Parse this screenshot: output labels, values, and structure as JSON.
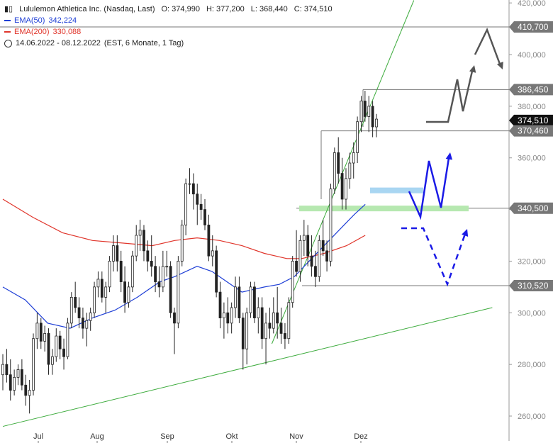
{
  "legend": {
    "symbol": "Lululemon Athletica Inc. (Nasdaq, Last)",
    "open": "O: 374,990",
    "high": "H: 377,200",
    "low": "L: 368,440",
    "close": "C: 374,510",
    "ema50_label": "EMA(50)",
    "ema50_value": "342,224",
    "ema200_label": "EMA(200)",
    "ema200_value": "330,088",
    "range": "14.06.2022 - 08.12.2022",
    "range_detail": "(EST, 6 Monate, 1 Tag)"
  },
  "colors": {
    "ema50": "#1f3fd6",
    "ema200": "#e0352b",
    "trend": "#3cab3c",
    "projection_up": "#1a1ae6",
    "projection_gray": "#555555",
    "support_zone": "#b6e8b0",
    "resistance_zone": "#a9d6f2"
  },
  "chart_data": {
    "type": "candlestick",
    "x_ticks": [
      "Jul",
      "Aug",
      "Sep",
      "Okt",
      "Nov",
      "Dez"
    ],
    "y_ticks": [
      "420,000",
      "400,000",
      "380,000",
      "360,000",
      "340,000",
      "320,000",
      "300,000",
      "280,000",
      "260,000"
    ],
    "y_tick_values": [
      420,
      400,
      380,
      360,
      340,
      320,
      300,
      280,
      260
    ],
    "ylim": [
      254,
      421
    ],
    "price_marks": [
      {
        "label": "410,700",
        "value": 410.7,
        "style": "gray"
      },
      {
        "label": "386,450",
        "value": 386.45,
        "style": "gray"
      },
      {
        "label": "374,510",
        "value": 374.51,
        "style": "black"
      },
      {
        "label": "370,460",
        "value": 370.46,
        "style": "gray"
      },
      {
        "label": "340,500",
        "value": 340.5,
        "style": "gray"
      },
      {
        "label": "310,520",
        "value": 310.52,
        "style": "gray"
      }
    ],
    "candles": [
      [
        276,
        284,
        270,
        280
      ],
      [
        280,
        286,
        273,
        276
      ],
      [
        276,
        282,
        266,
        270
      ],
      [
        270,
        278,
        268,
        275
      ],
      [
        275,
        280,
        272,
        278
      ],
      [
        278,
        282,
        270,
        272
      ],
      [
        272,
        276,
        264,
        268
      ],
      [
        268,
        274,
        261,
        270
      ],
      [
        270,
        292,
        268,
        290
      ],
      [
        290,
        300,
        286,
        296
      ],
      [
        296,
        298,
        286,
        289
      ],
      [
        289,
        295,
        285,
        292
      ],
      [
        292,
        294,
        276,
        280
      ],
      [
        280,
        286,
        276,
        283
      ],
      [
        283,
        294,
        281,
        291
      ],
      [
        291,
        293,
        282,
        286
      ],
      [
        286,
        290,
        278,
        283
      ],
      [
        283,
        298,
        282,
        296
      ],
      [
        296,
        308,
        294,
        306
      ],
      [
        306,
        312,
        300,
        302
      ],
      [
        302,
        306,
        294,
        298
      ],
      [
        298,
        302,
        290,
        294
      ],
      [
        294,
        300,
        287,
        297
      ],
      [
        297,
        302,
        293,
        300
      ],
      [
        300,
        312,
        298,
        310
      ],
      [
        310,
        316,
        306,
        313
      ],
      [
        313,
        316,
        304,
        306
      ],
      [
        306,
        312,
        300,
        310
      ],
      [
        310,
        322,
        308,
        320
      ],
      [
        320,
        330,
        316,
        326
      ],
      [
        326,
        330,
        316,
        320
      ],
      [
        320,
        324,
        308,
        312
      ],
      [
        312,
        318,
        300,
        304
      ],
      [
        304,
        312,
        302,
        310
      ],
      [
        310,
        324,
        308,
        322
      ],
      [
        322,
        334,
        320,
        330
      ],
      [
        330,
        336,
        324,
        332
      ],
      [
        332,
        334,
        320,
        324
      ],
      [
        324,
        328,
        316,
        320
      ],
      [
        320,
        330,
        314,
        318
      ],
      [
        318,
        322,
        308,
        312
      ],
      [
        312,
        318,
        306,
        310
      ],
      [
        310,
        324,
        308,
        318
      ],
      [
        318,
        324,
        314,
        318
      ],
      [
        318,
        320,
        298,
        300
      ],
      [
        300,
        302,
        284,
        296
      ],
      [
        296,
        322,
        294,
        320
      ],
      [
        320,
        336,
        318,
        334
      ],
      [
        334,
        352,
        330,
        350
      ],
      [
        350,
        356,
        346,
        350
      ],
      [
        350,
        354,
        340,
        346
      ],
      [
        346,
        350,
        334,
        342
      ],
      [
        342,
        346,
        336,
        340
      ],
      [
        340,
        344,
        332,
        334
      ],
      [
        334,
        338,
        320,
        322
      ],
      [
        322,
        330,
        318,
        324
      ],
      [
        324,
        326,
        306,
        308
      ],
      [
        308,
        312,
        294,
        298
      ],
      [
        298,
        304,
        290,
        300
      ],
      [
        300,
        306,
        292,
        296
      ],
      [
        296,
        304,
        292,
        302
      ],
      [
        302,
        314,
        298,
        310
      ],
      [
        310,
        314,
        296,
        298
      ],
      [
        298,
        300,
        278,
        286
      ],
      [
        286,
        302,
        280,
        300
      ],
      [
        300,
        312,
        298,
        310
      ],
      [
        310,
        312,
        296,
        298
      ],
      [
        298,
        306,
        292,
        302
      ],
      [
        302,
        306,
        286,
        290
      ],
      [
        290,
        300,
        280,
        296
      ],
      [
        296,
        302,
        290,
        294
      ],
      [
        294,
        306,
        292,
        300
      ],
      [
        300,
        310,
        290,
        296
      ],
      [
        296,
        302,
        288,
        292
      ],
      [
        292,
        296,
        286,
        290
      ],
      [
        290,
        306,
        288,
        304
      ],
      [
        304,
        322,
        302,
        320
      ],
      [
        320,
        332,
        314,
        316
      ],
      [
        316,
        330,
        312,
        328
      ],
      [
        328,
        336,
        322,
        330
      ],
      [
        330,
        334,
        318,
        322
      ],
      [
        322,
        330,
        314,
        318
      ],
      [
        318,
        324,
        310,
        314
      ],
      [
        314,
        330,
        312,
        328
      ],
      [
        328,
        336,
        322,
        324
      ],
      [
        324,
        328,
        316,
        320
      ],
      [
        320,
        350,
        318,
        348
      ],
      [
        348,
        364,
        346,
        362
      ],
      [
        362,
        368,
        350,
        354
      ],
      [
        354,
        360,
        340,
        344
      ],
      [
        344,
        356,
        340,
        352
      ],
      [
        352,
        362,
        348,
        358
      ],
      [
        358,
        366,
        352,
        362
      ],
      [
        362,
        376,
        358,
        374
      ],
      [
        374,
        384,
        370,
        382
      ],
      [
        382,
        386,
        374,
        376
      ],
      [
        376,
        384,
        370,
        380
      ],
      [
        380,
        382,
        368,
        372
      ],
      [
        372,
        377,
        368,
        375
      ]
    ],
    "ema50": [
      [
        0,
        310
      ],
      [
        0.06,
        305
      ],
      [
        0.12,
        296
      ],
      [
        0.18,
        294
      ],
      [
        0.24,
        298
      ],
      [
        0.3,
        301
      ],
      [
        0.36,
        306
      ],
      [
        0.42,
        312
      ],
      [
        0.46,
        314
      ],
      [
        0.52,
        318
      ],
      [
        0.56,
        316
      ],
      [
        0.6,
        312
      ],
      [
        0.64,
        308
      ],
      [
        0.7,
        310
      ],
      [
        0.74,
        311
      ],
      [
        0.78,
        314
      ],
      [
        0.82,
        320
      ],
      [
        0.86,
        326
      ],
      [
        0.9,
        332
      ],
      [
        0.94,
        338
      ],
      [
        0.97,
        342
      ]
    ],
    "ema200": [
      [
        0,
        344
      ],
      [
        0.08,
        337
      ],
      [
        0.16,
        331
      ],
      [
        0.24,
        328
      ],
      [
        0.32,
        327
      ],
      [
        0.4,
        326
      ],
      [
        0.46,
        328
      ],
      [
        0.52,
        329
      ],
      [
        0.58,
        328
      ],
      [
        0.64,
        326
      ],
      [
        0.7,
        323
      ],
      [
        0.76,
        321
      ],
      [
        0.8,
        321
      ],
      [
        0.86,
        323
      ],
      [
        0.92,
        326
      ],
      [
        0.97,
        330
      ]
    ],
    "trendlines": [
      {
        "from": [
          0,
          256
        ],
        "to": [
          1.31,
          302
        ],
        "color": "trend"
      },
      {
        "from": [
          0.72,
          288
        ],
        "to": [
          1.1,
          421
        ],
        "color": "trend"
      }
    ]
  }
}
